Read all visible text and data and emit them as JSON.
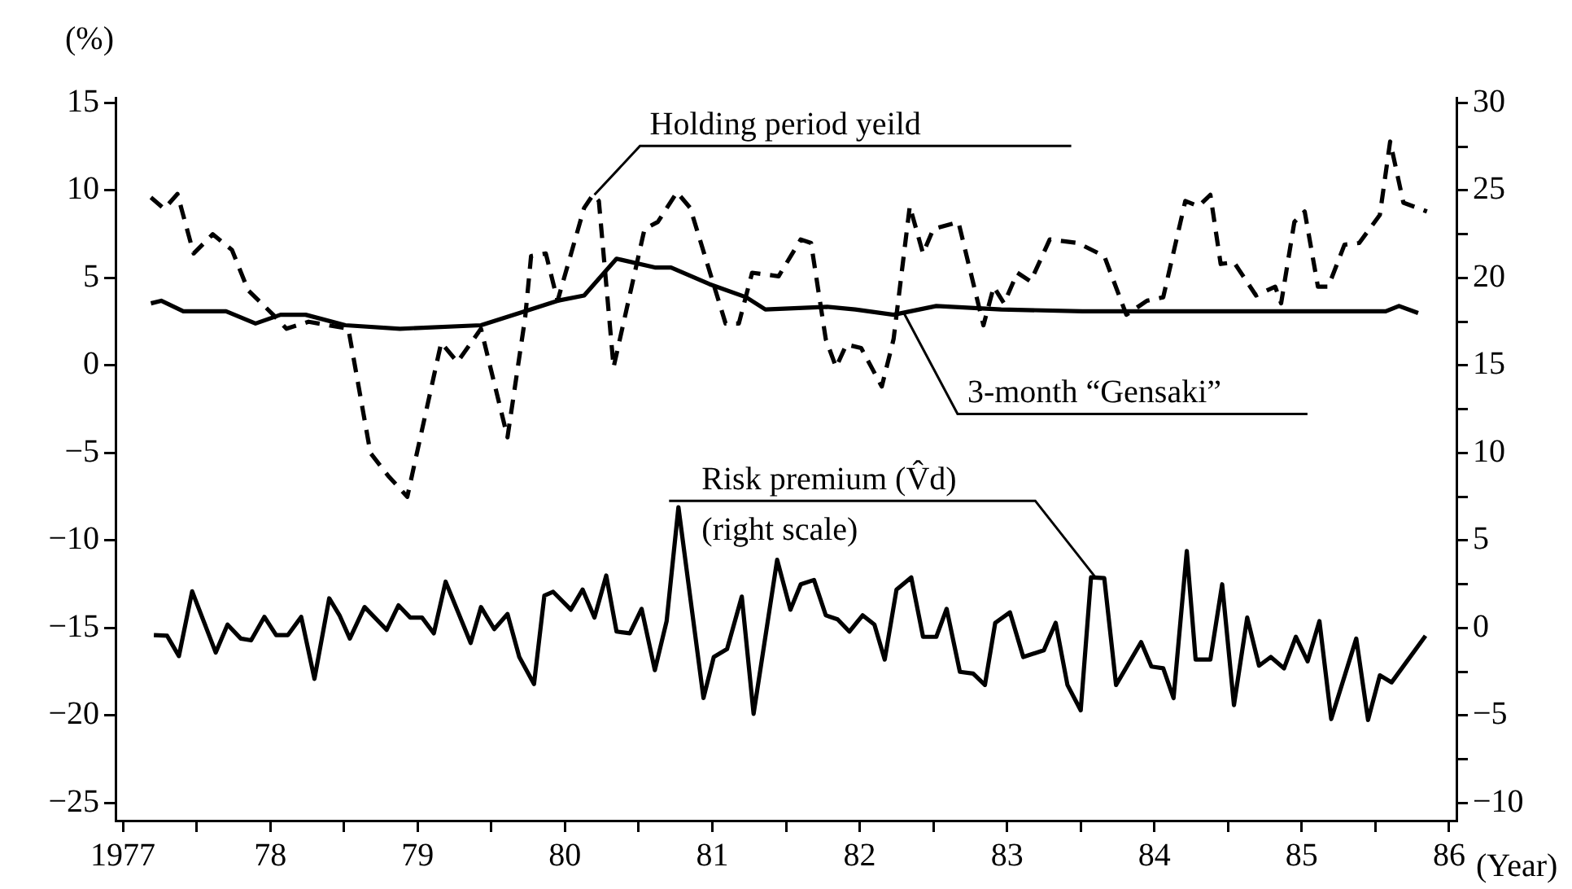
{
  "chart_data": {
    "type": "line",
    "ylabel": "(%)",
    "xlabel": "(Year)",
    "xlim": [
      1976.95,
      1986.05
    ],
    "xticks": [
      {
        "value": 1977,
        "label": "1977"
      },
      {
        "value": 1977.5,
        "label": null
      },
      {
        "value": 1978,
        "label": "78"
      },
      {
        "value": 1978.5,
        "label": null
      },
      {
        "value": 1979,
        "label": "79"
      },
      {
        "value": 1979.5,
        "label": null
      },
      {
        "value": 1980,
        "label": "80"
      },
      {
        "value": 1980.5,
        "label": null
      },
      {
        "value": 1981,
        "label": "81"
      },
      {
        "value": 1981.5,
        "label": null
      },
      {
        "value": 1982,
        "label": "82"
      },
      {
        "value": 1982.5,
        "label": null
      },
      {
        "value": 1983,
        "label": "83"
      },
      {
        "value": 1983.5,
        "label": null
      },
      {
        "value": 1984,
        "label": "84"
      },
      {
        "value": 1984.5,
        "label": null
      },
      {
        "value": 1985,
        "label": "85"
      },
      {
        "value": 1985.5,
        "label": null
      },
      {
        "value": 1986,
        "label": "86"
      }
    ],
    "ylim": [
      -26,
      15.3
    ],
    "yticks": [
      15,
      10,
      5,
      0,
      {
        "value": -5,
        "label": "−5"
      },
      {
        "value": -10,
        "label": "−10"
      },
      {
        "value": -15,
        "label": "−15"
      },
      {
        "value": -20,
        "label": "−20"
      },
      {
        "value": -25,
        "label": "−25"
      }
    ],
    "y2lim": [
      -11,
      30.3
    ],
    "y2ticks": [
      30,
      {
        "value": 27.5,
        "label": null
      },
      25,
      {
        "value": 22.5,
        "label": null
      },
      20,
      {
        "value": 17.5,
        "label": null
      },
      15,
      {
        "value": 12.5,
        "label": null
      },
      10,
      {
        "value": 7.5,
        "label": null
      },
      5,
      {
        "value": 2.5,
        "label": null
      },
      0,
      {
        "value": -2.5,
        "label": null
      },
      {
        "value": -5,
        "label": "−5"
      },
      {
        "value": -7.5,
        "label": null
      },
      {
        "value": -10,
        "label": "−10"
      }
    ],
    "grid": false,
    "legend": false,
    "marker": "none",
    "series": [
      {
        "color": "#000000",
        "line_style": "dashed",
        "x": [
          1977.19,
          1977.28,
          1977.37,
          1977.48,
          1977.61,
          1977.74,
          1977.85,
          1978.02,
          1978.11,
          1978.26,
          1978.53,
          1978.68,
          1978.8,
          1978.93,
          1978.99,
          1979.16,
          1979.27,
          1979.43,
          1979.61,
          1979.73,
          1979.77,
          1979.87,
          1979.95,
          1980.13,
          1980.19,
          1980.23,
          1980.33,
          1980.54,
          1980.63,
          1980.76,
          1980.85,
          1981.09,
          1981.18,
          1981.27,
          1981.45,
          1981.6,
          1981.67,
          1981.77,
          1981.84,
          1981.91,
          1982.01,
          1982.15,
          1982.23,
          1982.34,
          1982.43,
          1982.5,
          1982.67,
          1982.84,
          1982.91,
          1982.98,
          1983.07,
          1983.16,
          1983.29,
          1983.48,
          1983.66,
          1983.81,
          1983.95,
          1984.06,
          1984.21,
          1984.3,
          1984.38,
          1984.45,
          1984.54,
          1984.69,
          1984.82,
          1984.86,
          1984.95,
          1985.02,
          1985.11,
          1985.18,
          1985.29,
          1985.39,
          1985.53,
          1985.6,
          1985.69,
          1985.85
        ],
        "values": [
          9.6,
          8.95,
          9.8,
          6.4,
          7.5,
          6.6,
          4.3,
          2.9,
          2.1,
          2.5,
          2.1,
          -5,
          -6.3,
          -7.5,
          -5.2,
          1.3,
          0.2,
          2.1,
          -4.1,
          2.75,
          6.25,
          6.4,
          3.7,
          9,
          9.75,
          9.4,
          -0.1,
          7.8,
          8.2,
          9.9,
          9,
          2.4,
          2.4,
          5.3,
          5.1,
          7.2,
          7,
          1.5,
          -0.1,
          1.2,
          1,
          -1.2,
          1.5,
          9.1,
          6.4,
          7.8,
          8.2,
          2.3,
          4.5,
          3.55,
          5.3,
          4.8,
          7.2,
          7,
          6.25,
          2.9,
          3.7,
          3.9,
          9.4,
          9.1,
          9.75,
          5.8,
          5.9,
          4,
          4.5,
          3.55,
          8.2,
          8.8,
          4.5,
          4.5,
          6.9,
          7,
          8.6,
          12.8,
          9.3,
          8.8
        ]
      },
      {
        "color": "#000000",
        "line_style": "solid",
        "x": [
          1977.19,
          1977.26,
          1977.41,
          1977.7,
          1977.9,
          1978.07,
          1978.24,
          1978.51,
          1978.88,
          1979.43,
          1979.73,
          1979.95,
          1980.13,
          1980.35,
          1980.61,
          1980.72,
          1980.98,
          1981.23,
          1981.36,
          1981.78,
          1981.97,
          1982.23,
          1982.52,
          1982.96,
          1983.51,
          1983.88,
          1984.62,
          1985.57,
          1985.66,
          1985.79
        ],
        "values": [
          3.55,
          3.7,
          3.1,
          3.1,
          2.4,
          2.9,
          2.9,
          2.3,
          2.1,
          2.3,
          3.1,
          3.7,
          4,
          6.1,
          5.6,
          5.6,
          4.65,
          3.9,
          3.2,
          3.35,
          3.2,
          2.9,
          3.4,
          3.2,
          3.1,
          3.1,
          3.1,
          3.1,
          3.4,
          3
        ]
      },
      {
        "color": "#000000",
        "line_style": "solid",
        "axis": "y2",
        "x": [
          1977.21,
          1977.3,
          1977.38,
          1977.47,
          1977.63,
          1977.71,
          1977.8,
          1977.87,
          1977.96,
          1978.04,
          1978.12,
          1978.21,
          1978.3,
          1978.4,
          1978.47,
          1978.54,
          1978.64,
          1978.79,
          1978.87,
          1978.95,
          1979.03,
          1979.11,
          1979.19,
          1979.36,
          1979.43,
          1979.52,
          1979.61,
          1979.69,
          1979.79,
          1979.86,
          1979.92,
          1980.04,
          1980.12,
          1980.2,
          1980.28,
          1980.35,
          1980.44,
          1980.52,
          1980.61,
          1980.69,
          1980.77,
          1980.94,
          1981.01,
          1981.1,
          1981.2,
          1981.28,
          1981.44,
          1981.53,
          1981.6,
          1981.69,
          1981.77,
          1981.85,
          1981.93,
          1982.02,
          1982.1,
          1982.17,
          1982.25,
          1982.35,
          1982.43,
          1982.52,
          1982.59,
          1982.68,
          1982.77,
          1982.85,
          1982.92,
          1983.02,
          1983.11,
          1983.25,
          1983.33,
          1983.41,
          1983.5,
          1983.57,
          1983.66,
          1983.74,
          1983.91,
          1983.98,
          1984.06,
          1984.13,
          1984.22,
          1984.28,
          1984.38,
          1984.46,
          1984.54,
          1984.63,
          1984.71,
          1984.79,
          1984.88,
          1984.96,
          1985.04,
          1985.12,
          1985.2,
          1985.37,
          1985.45,
          1985.53,
          1985.61,
          1985.84
        ],
        "values": [
          -0.4,
          -0.44,
          -1.6,
          2.1,
          -1.4,
          0.2,
          -0.6,
          -0.7,
          0.64,
          -0.4,
          -0.4,
          0.64,
          -2.9,
          1.7,
          0.73,
          -0.6,
          1.2,
          -0.1,
          1.3,
          0.6,
          0.6,
          -0.3,
          2.65,
          -0.85,
          1.2,
          -0.06,
          0.8,
          -1.65,
          -3.2,
          1.85,
          2.07,
          1.05,
          2.2,
          0.6,
          3,
          -0.2,
          -0.3,
          1.1,
          -2.4,
          0.4,
          6.9,
          -4,
          -1.65,
          -1.2,
          1.8,
          -4.9,
          3.9,
          1.05,
          2.5,
          2.75,
          0.73,
          0.5,
          -0.2,
          0.73,
          0.2,
          -1.8,
          2.2,
          2.9,
          -0.5,
          -0.5,
          1.1,
          -2.5,
          -2.6,
          -3.25,
          0.3,
          0.9,
          -1.65,
          -1.27,
          0.3,
          -3.25,
          -4.7,
          2.9,
          2.85,
          -3.25,
          -0.8,
          -2.2,
          -2.3,
          -4,
          4.4,
          -1.8,
          -1.8,
          2.5,
          -4.4,
          0.6,
          -2.15,
          -1.65,
          -2.3,
          -0.5,
          -1.9,
          0.4,
          -5.2,
          -0.6,
          -5.25,
          -2.7,
          -3.1,
          -0.44
        ]
      }
    ],
    "annotations": [
      {
        "text": "Holding period yeild",
        "x": 1980.2,
        "y": 9.75
      },
      {
        "text": "3-month “Gensaki”",
        "x": 1982.3,
        "y": 3
      },
      {
        "text": "Risk premium (V̂d)",
        "x": 1983.6,
        "y": -12.1
      },
      "(right scale)"
    ]
  }
}
